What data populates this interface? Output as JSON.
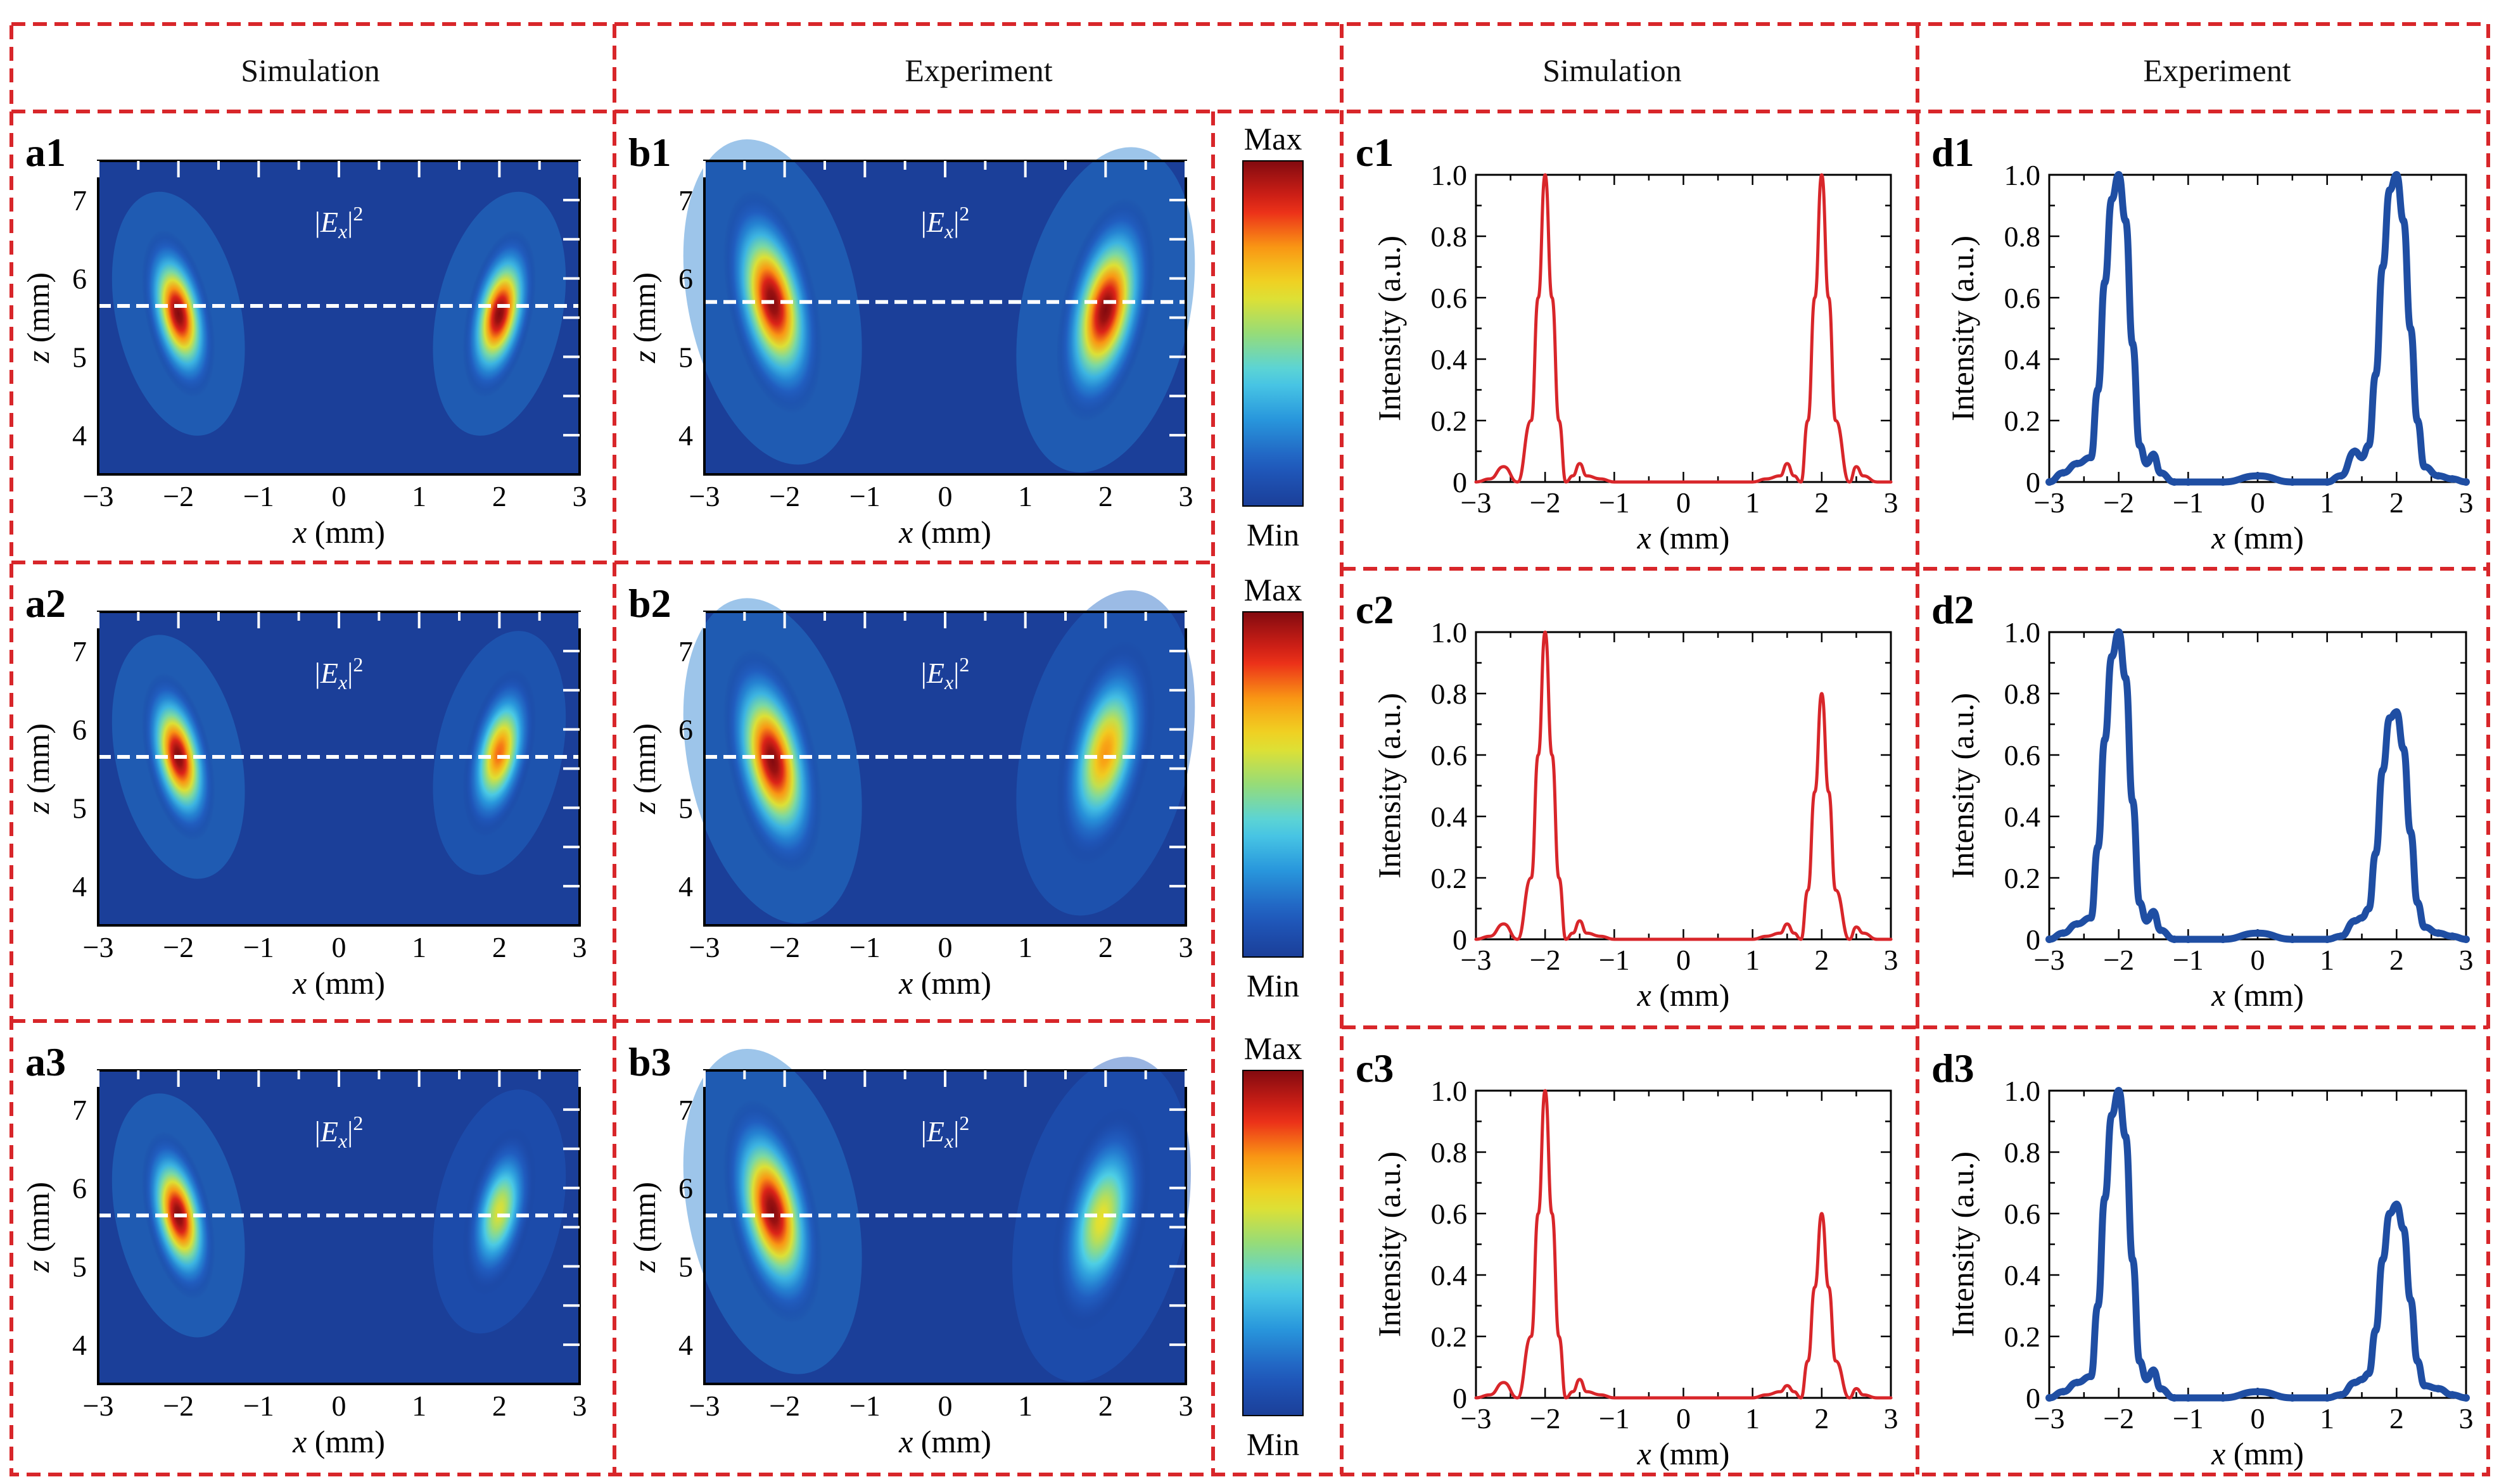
{
  "headers": [
    "Simulation",
    "Experiment",
    "Simulation",
    "Experiment"
  ],
  "colors": {
    "divider": "#d8262a",
    "simulation_curve": "#d8262a",
    "experiment_curve": "#1f4ea3",
    "map_background": "#1b3f99",
    "cut_line": "#ffffff"
  },
  "colorbar": {
    "max_label": "Max",
    "min_label": "Min"
  },
  "field_label": {
    "prefix": "|E",
    "sub": "x",
    "suffix": "|",
    "sup": "2"
  },
  "map_axes": {
    "xlabel_var": "x",
    "xlabel_unit": " (mm)",
    "ylabel_var": "z",
    "ylabel_unit": " (mm)",
    "xticks": [
      "−3",
      "−2",
      "−1",
      "0",
      "1",
      "2",
      "3"
    ],
    "yticks": [
      "4",
      "5",
      "6",
      "7"
    ]
  },
  "line_axes": {
    "xlabel_var": "x",
    "xlabel_unit": " (mm)",
    "ylabel": "Intensity (a.u.)",
    "xticks": [
      "−3",
      "−2",
      "−1",
      "0",
      "1",
      "2",
      "3"
    ],
    "yticks": [
      "0",
      "0.2",
      "0.4",
      "0.6",
      "0.8",
      "1.0"
    ]
  },
  "rows": [
    {
      "map_labels": [
        "a1",
        "b1"
      ],
      "line_labels": [
        "c1",
        "d1"
      ]
    },
    {
      "map_labels": [
        "a2",
        "b2"
      ],
      "line_labels": [
        "c2",
        "d2"
      ]
    },
    {
      "map_labels": [
        "a3",
        "b3"
      ],
      "line_labels": [
        "c3",
        "d3"
      ]
    }
  ],
  "chart_data": [
    {
      "id": "a1",
      "type": "heatmap",
      "source": "Simulation",
      "x_range": [
        -3,
        3
      ],
      "y_range": [
        3.5,
        7.5
      ],
      "cut_z": 5.65,
      "spots": [
        {
          "x": -2.0,
          "z": 5.55,
          "peak": 1.0
        },
        {
          "x": 2.0,
          "z": 5.55,
          "peak": 1.0
        }
      ]
    },
    {
      "id": "b1",
      "type": "heatmap",
      "source": "Experiment",
      "x_range": [
        -3,
        3
      ],
      "y_range": [
        3.5,
        7.5
      ],
      "cut_z": 5.7,
      "spots": [
        {
          "x": -2.15,
          "z": 5.7,
          "peak": 1.0
        },
        {
          "x": 2.0,
          "z": 5.6,
          "peak": 1.0
        }
      ]
    },
    {
      "id": "a2",
      "type": "heatmap",
      "source": "Simulation",
      "x_range": [
        -3,
        3
      ],
      "y_range": [
        3.5,
        7.5
      ],
      "cut_z": 5.65,
      "spots": [
        {
          "x": -2.0,
          "z": 5.65,
          "peak": 1.0
        },
        {
          "x": 2.0,
          "z": 5.7,
          "peak": 0.8
        }
      ]
    },
    {
      "id": "b2",
      "type": "heatmap",
      "source": "Experiment",
      "x_range": [
        -3,
        3
      ],
      "y_range": [
        3.5,
        7.5
      ],
      "cut_z": 5.65,
      "spots": [
        {
          "x": -2.15,
          "z": 5.6,
          "peak": 1.0
        },
        {
          "x": 2.0,
          "z": 5.7,
          "peak": 0.75
        }
      ]
    },
    {
      "id": "a3",
      "type": "heatmap",
      "source": "Simulation",
      "x_range": [
        -3,
        3
      ],
      "y_range": [
        3.5,
        7.5
      ],
      "cut_z": 5.65,
      "spots": [
        {
          "x": -2.0,
          "z": 5.65,
          "peak": 1.0
        },
        {
          "x": 2.0,
          "z": 5.7,
          "peak": 0.6
        }
      ]
    },
    {
      "id": "b3",
      "type": "heatmap",
      "source": "Experiment",
      "x_range": [
        -3,
        3
      ],
      "y_range": [
        3.5,
        7.5
      ],
      "cut_z": 5.65,
      "spots": [
        {
          "x": -2.15,
          "z": 5.7,
          "peak": 1.0
        },
        {
          "x": 1.95,
          "z": 5.6,
          "peak": 0.62
        }
      ]
    },
    {
      "id": "c1",
      "type": "line",
      "source": "Simulation",
      "xlabel": "x (mm)",
      "ylabel": "Intensity (a.u.)",
      "xlim": [
        -3,
        3
      ],
      "ylim": [
        0,
        1.0
      ],
      "x": [
        -3,
        -2.8,
        -2.6,
        -2.4,
        -2.2,
        -2.1,
        -2.0,
        -1.9,
        -1.8,
        -1.7,
        -1.6,
        -1.5,
        -1.4,
        -1.2,
        -1.0,
        -0.5,
        0,
        0.5,
        1.0,
        1.2,
        1.4,
        1.5,
        1.6,
        1.7,
        1.8,
        1.9,
        2.0,
        2.1,
        2.2,
        2.4,
        2.5,
        2.6,
        2.8,
        3.0
      ],
      "y": [
        0.0,
        0.01,
        0.05,
        0.0,
        0.2,
        0.6,
        1.0,
        0.6,
        0.2,
        0.0,
        0.02,
        0.06,
        0.02,
        0.01,
        0.0,
        0.0,
        0.0,
        0.0,
        0.0,
        0.01,
        0.02,
        0.06,
        0.02,
        0.0,
        0.2,
        0.6,
        1.0,
        0.6,
        0.2,
        0.0,
        0.05,
        0.02,
        0.0,
        0.0
      ]
    },
    {
      "id": "d1",
      "type": "line",
      "source": "Experiment",
      "xlabel": "x (mm)",
      "ylabel": "Intensity (a.u.)",
      "xlim": [
        -3,
        3
      ],
      "ylim": [
        0,
        1.0
      ],
      "x": [
        -3,
        -2.8,
        -2.6,
        -2.4,
        -2.3,
        -2.2,
        -2.1,
        -2.0,
        -1.9,
        -1.8,
        -1.7,
        -1.6,
        -1.5,
        -1.4,
        -1.2,
        -1.0,
        -0.5,
        0,
        0.5,
        1.0,
        1.2,
        1.4,
        1.5,
        1.6,
        1.7,
        1.8,
        1.9,
        2.0,
        2.1,
        2.2,
        2.3,
        2.4,
        2.6,
        2.8,
        3.0
      ],
      "y": [
        0.0,
        0.03,
        0.06,
        0.08,
        0.3,
        0.65,
        0.92,
        1.0,
        0.85,
        0.45,
        0.12,
        0.06,
        0.09,
        0.03,
        0.0,
        0.0,
        0.0,
        0.02,
        0.0,
        0.0,
        0.02,
        0.1,
        0.08,
        0.12,
        0.35,
        0.7,
        0.95,
        1.0,
        0.85,
        0.5,
        0.2,
        0.05,
        0.02,
        0.01,
        0.0
      ]
    },
    {
      "id": "c2",
      "type": "line",
      "source": "Simulation",
      "xlabel": "x (mm)",
      "ylabel": "Intensity (a.u.)",
      "xlim": [
        -3,
        3
      ],
      "ylim": [
        0,
        1.0
      ],
      "x": [
        -3,
        -2.8,
        -2.6,
        -2.4,
        -2.2,
        -2.1,
        -2.0,
        -1.9,
        -1.8,
        -1.7,
        -1.6,
        -1.5,
        -1.4,
        -1.2,
        -1.0,
        -0.5,
        0,
        0.5,
        1.0,
        1.2,
        1.4,
        1.5,
        1.6,
        1.7,
        1.8,
        1.9,
        2.0,
        2.1,
        2.2,
        2.4,
        2.5,
        2.6,
        2.8,
        3.0
      ],
      "y": [
        0.0,
        0.01,
        0.05,
        0.0,
        0.2,
        0.6,
        1.0,
        0.6,
        0.2,
        0.0,
        0.02,
        0.06,
        0.02,
        0.01,
        0.0,
        0.0,
        0.0,
        0.0,
        0.0,
        0.01,
        0.02,
        0.05,
        0.02,
        0.0,
        0.16,
        0.48,
        0.8,
        0.48,
        0.16,
        0.0,
        0.04,
        0.02,
        0.0,
        0.0
      ]
    },
    {
      "id": "d2",
      "type": "line",
      "source": "Experiment",
      "xlabel": "x (mm)",
      "ylabel": "Intensity (a.u.)",
      "xlim": [
        -3,
        3
      ],
      "ylim": [
        0,
        1.0
      ],
      "x": [
        -3,
        -2.8,
        -2.6,
        -2.4,
        -2.3,
        -2.2,
        -2.1,
        -2.0,
        -1.9,
        -1.8,
        -1.7,
        -1.6,
        -1.5,
        -1.4,
        -1.2,
        -1.0,
        -0.5,
        0,
        0.5,
        1.0,
        1.2,
        1.4,
        1.5,
        1.6,
        1.7,
        1.8,
        1.9,
        2.0,
        2.1,
        2.2,
        2.3,
        2.4,
        2.6,
        2.8,
        3.0
      ],
      "y": [
        0.0,
        0.02,
        0.05,
        0.07,
        0.3,
        0.65,
        0.92,
        1.0,
        0.85,
        0.45,
        0.12,
        0.06,
        0.09,
        0.03,
        0.0,
        0.0,
        0.0,
        0.02,
        0.0,
        0.0,
        0.01,
        0.06,
        0.07,
        0.1,
        0.28,
        0.55,
        0.72,
        0.74,
        0.62,
        0.35,
        0.12,
        0.04,
        0.02,
        0.01,
        0.0
      ]
    },
    {
      "id": "c3",
      "type": "line",
      "source": "Simulation",
      "xlabel": "x (mm)",
      "ylabel": "Intensity (a.u.)",
      "xlim": [
        -3,
        3
      ],
      "ylim": [
        0,
        1.0
      ],
      "x": [
        -3,
        -2.8,
        -2.6,
        -2.4,
        -2.2,
        -2.1,
        -2.0,
        -1.9,
        -1.8,
        -1.7,
        -1.6,
        -1.5,
        -1.4,
        -1.2,
        -1.0,
        -0.5,
        0,
        0.5,
        1.0,
        1.2,
        1.4,
        1.5,
        1.6,
        1.7,
        1.8,
        1.9,
        2.0,
        2.1,
        2.2,
        2.4,
        2.5,
        2.6,
        2.8,
        3.0
      ],
      "y": [
        0.0,
        0.01,
        0.05,
        0.0,
        0.2,
        0.6,
        1.0,
        0.6,
        0.2,
        0.0,
        0.02,
        0.06,
        0.02,
        0.01,
        0.0,
        0.0,
        0.0,
        0.0,
        0.0,
        0.01,
        0.02,
        0.04,
        0.02,
        0.0,
        0.12,
        0.36,
        0.6,
        0.36,
        0.12,
        0.0,
        0.03,
        0.01,
        0.0,
        0.0
      ]
    },
    {
      "id": "d3",
      "type": "line",
      "source": "Experiment",
      "xlabel": "x (mm)",
      "ylabel": "Intensity (a.u.)",
      "xlim": [
        -3,
        3
      ],
      "ylim": [
        0,
        1.0
      ],
      "x": [
        -3,
        -2.8,
        -2.6,
        -2.4,
        -2.3,
        -2.2,
        -2.1,
        -2.0,
        -1.9,
        -1.8,
        -1.7,
        -1.6,
        -1.5,
        -1.4,
        -1.2,
        -1.0,
        -0.5,
        0,
        0.5,
        1.0,
        1.2,
        1.4,
        1.5,
        1.6,
        1.7,
        1.8,
        1.9,
        2.0,
        2.1,
        2.2,
        2.3,
        2.4,
        2.6,
        2.8,
        3.0
      ],
      "y": [
        0.0,
        0.02,
        0.05,
        0.07,
        0.3,
        0.65,
        0.92,
        1.0,
        0.85,
        0.45,
        0.12,
        0.06,
        0.09,
        0.03,
        0.0,
        0.0,
        0.0,
        0.02,
        0.0,
        0.0,
        0.01,
        0.05,
        0.06,
        0.08,
        0.22,
        0.45,
        0.6,
        0.63,
        0.55,
        0.32,
        0.12,
        0.04,
        0.03,
        0.01,
        0.0
      ]
    }
  ]
}
